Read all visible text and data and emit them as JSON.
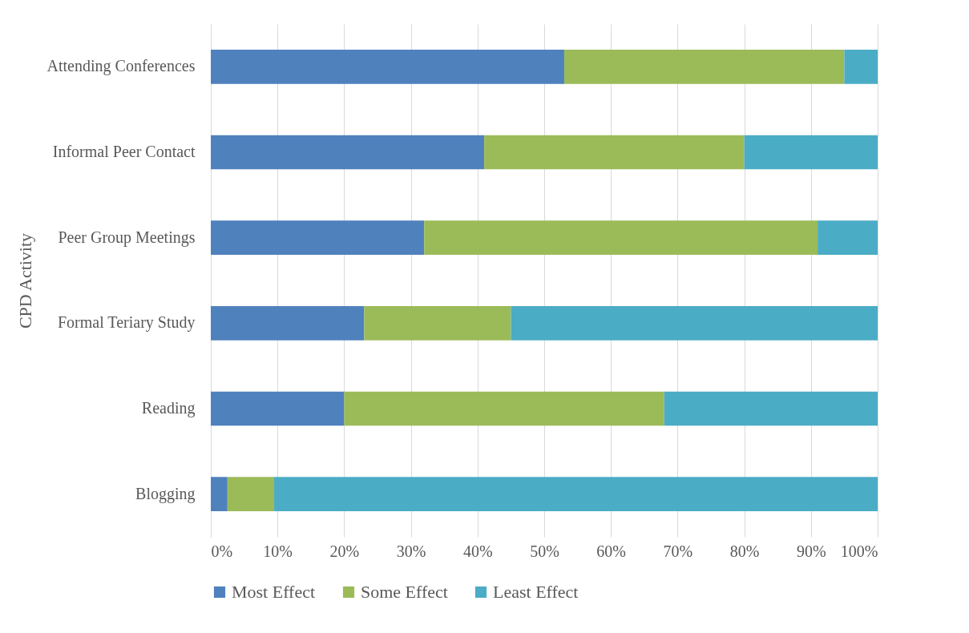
{
  "chart_data": {
    "type": "bar",
    "orientation": "horizontal",
    "stacked": true,
    "ylabel": "CPD Activity",
    "categories": [
      "Attending Conferences",
      "Informal Peer Contact",
      "Peer Group Meetings",
      "Formal Teriary Study",
      "Reading",
      "Blogging"
    ],
    "series": [
      {
        "name": "Most Effect",
        "color": "#4f81bd",
        "values": [
          53,
          41,
          32,
          23,
          20,
          2.5
        ]
      },
      {
        "name": "Some Effect",
        "color": "#9bbb59",
        "values": [
          42,
          39,
          59,
          22,
          48,
          7
        ]
      },
      {
        "name": "Least Effect",
        "color": "#4bacc6",
        "values": [
          5,
          20,
          9,
          55,
          32,
          90.5
        ]
      }
    ],
    "xlim": [
      0,
      100
    ],
    "xticks": [
      {
        "value": 0,
        "label": "0%"
      },
      {
        "value": 10,
        "label": "10%"
      },
      {
        "value": 20,
        "label": "20%"
      },
      {
        "value": 30,
        "label": "30%"
      },
      {
        "value": 40,
        "label": "40%"
      },
      {
        "value": 50,
        "label": "50%"
      },
      {
        "value": 60,
        "label": "60%"
      },
      {
        "value": 70,
        "label": "70%"
      },
      {
        "value": 80,
        "label": "80%"
      },
      {
        "value": 90,
        "label": "90%"
      },
      {
        "value": 100,
        "label": "100%"
      }
    ],
    "grid": "x",
    "legend": "bottom"
  }
}
